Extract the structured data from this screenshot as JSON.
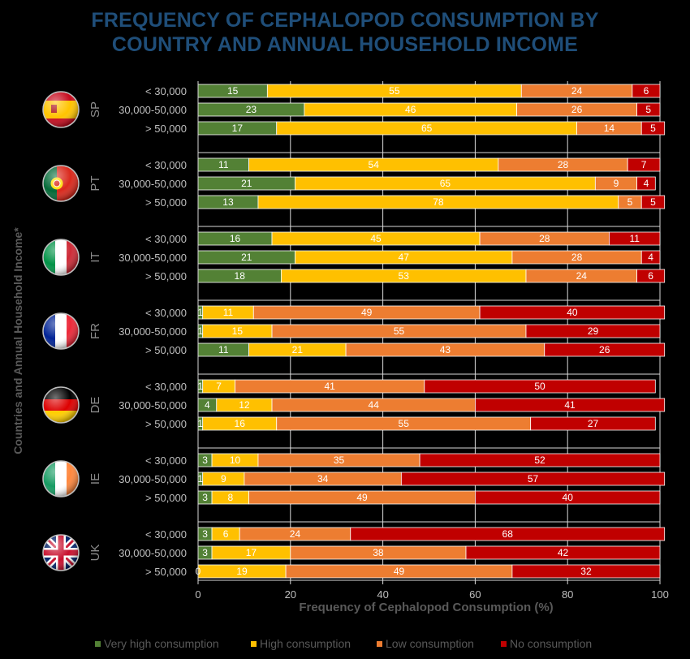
{
  "title_lines": [
    "FREQUENCY OF CEPHALOPOD CONSUMPTION BY",
    "COUNTRY AND ANNUAL HOUSEHOLD INCOME"
  ],
  "colors": {
    "title": "#1f4e79",
    "very_high": "#538135",
    "high": "#ffc000",
    "low": "#ed7d31",
    "none": "#c00000"
  },
  "chart_data": {
    "type": "bar",
    "orientation": "horizontal",
    "stacked": true,
    "title": "FREQUENCY OF CEPHALOPOD CONSUMPTION BY COUNTRY AND ANNUAL HOUSEHOLD INCOME",
    "xlabel": "Frequency of Cephalopod Consumption (%)",
    "ylabel": "Countries and Annual Household Income*",
    "xlim": [
      0,
      100
    ],
    "xticks": [
      0,
      20,
      40,
      60,
      80,
      100
    ],
    "legend_position": "bottom",
    "series_names": [
      "Very high consumption",
      "High consumption",
      "Low consumption",
      "No consumption"
    ],
    "groups": [
      {
        "country": "SP",
        "flag": "spain-flag",
        "rows": [
          {
            "income": "< 30,000",
            "values": [
              15,
              55,
              24,
              6
            ]
          },
          {
            "income": "30,000-50,000",
            "values": [
              23,
              46,
              26,
              5
            ]
          },
          {
            "income": "> 50,000",
            "values": [
              17,
              65,
              14,
              5
            ]
          }
        ]
      },
      {
        "country": "PT",
        "flag": "portugal-flag",
        "rows": [
          {
            "income": "< 30,000",
            "values": [
              11,
              54,
              28,
              7
            ]
          },
          {
            "income": "30,000-50,000",
            "values": [
              21,
              65,
              9,
              4
            ]
          },
          {
            "income": "> 50,000",
            "values": [
              13,
              78,
              5,
              5
            ]
          }
        ]
      },
      {
        "country": "IT",
        "flag": "italy-flag",
        "rows": [
          {
            "income": "< 30,000",
            "values": [
              16,
              45,
              28,
              11
            ]
          },
          {
            "income": "30,000-50,000",
            "values": [
              21,
              47,
              28,
              4
            ]
          },
          {
            "income": "> 50,000",
            "values": [
              18,
              53,
              24,
              6
            ]
          }
        ]
      },
      {
        "country": "FR",
        "flag": "france-flag",
        "rows": [
          {
            "income": "< 30,000",
            "values": [
              1,
              11,
              49,
              40
            ]
          },
          {
            "income": "30,000-50,000",
            "values": [
              1,
              15,
              55,
              29
            ]
          },
          {
            "income": "> 50,000",
            "values": [
              11,
              21,
              43,
              26
            ]
          }
        ]
      },
      {
        "country": "DE",
        "flag": "germany-flag",
        "rows": [
          {
            "income": "< 30,000",
            "values": [
              1,
              7,
              41,
              50
            ]
          },
          {
            "income": "30,000-50,000",
            "values": [
              4,
              12,
              44,
              41
            ]
          },
          {
            "income": "> 50,000",
            "values": [
              1,
              16,
              55,
              27
            ]
          }
        ]
      },
      {
        "country": "IE",
        "flag": "ireland-flag",
        "rows": [
          {
            "income": "< 30,000",
            "values": [
              3,
              10,
              35,
              52
            ]
          },
          {
            "income": "30,000-50,000",
            "values": [
              1,
              9,
              34,
              57
            ]
          },
          {
            "income": "> 50,000",
            "values": [
              3,
              8,
              49,
              40
            ]
          }
        ]
      },
      {
        "country": "UK",
        "flag": "uk-flag",
        "rows": [
          {
            "income": "< 30,000",
            "values": [
              3,
              6,
              24,
              68
            ]
          },
          {
            "income": "30,000-50,000",
            "values": [
              3,
              17,
              38,
              42
            ]
          },
          {
            "income": "> 50,000",
            "values": [
              0,
              19,
              49,
              32
            ]
          }
        ]
      }
    ]
  }
}
